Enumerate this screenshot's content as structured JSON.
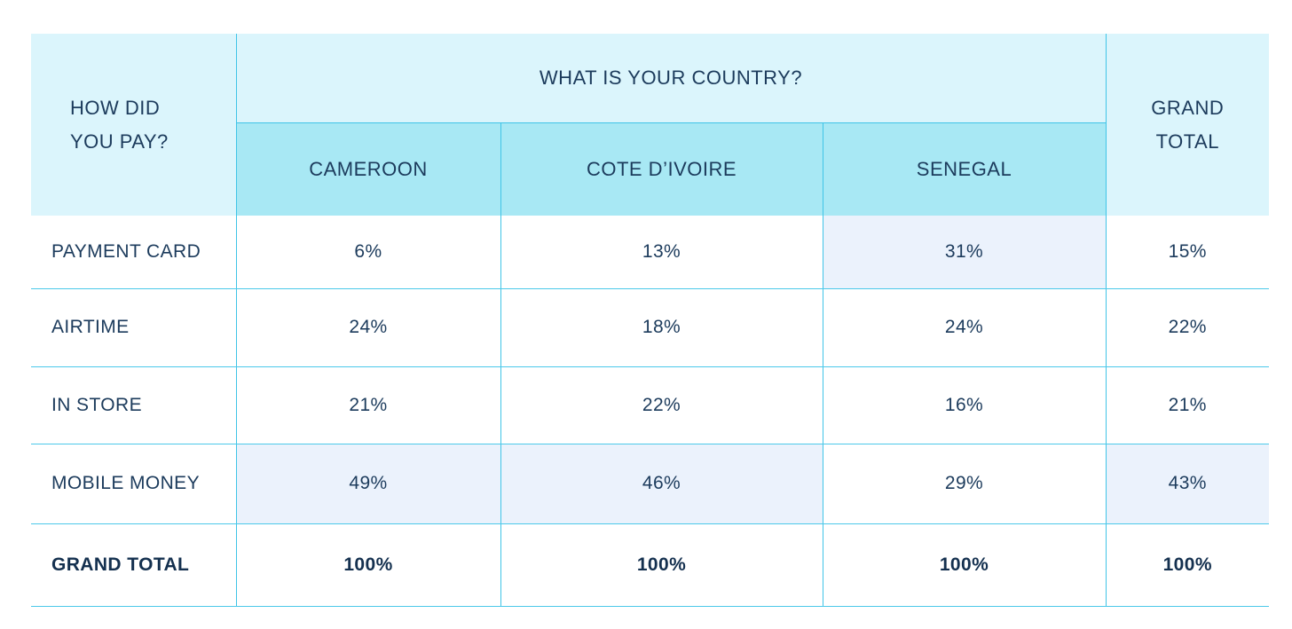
{
  "table": {
    "corner": {
      "line1": "HOW DID",
      "line2": "YOU PAY?"
    },
    "country_band": "WHAT IS YOUR COUNTRY?",
    "country_columns": [
      "CAMEROON",
      "COTE D’IVOIRE",
      "SENEGAL"
    ],
    "grand_total_header": {
      "line1": "GRAND",
      "line2": "TOTAL"
    },
    "rows": [
      {
        "label": "PAYMENT CARD",
        "values": [
          "6%",
          "13%",
          "31%",
          "15%"
        ],
        "highlight": [
          false,
          false,
          true,
          false
        ],
        "bold": false
      },
      {
        "label": "AIRTIME",
        "values": [
          "24%",
          "18%",
          "24%",
          "22%"
        ],
        "highlight": [
          false,
          false,
          false,
          false
        ],
        "bold": false
      },
      {
        "label": "IN STORE",
        "values": [
          "21%",
          "22%",
          "16%",
          "21%"
        ],
        "highlight": [
          false,
          false,
          false,
          false
        ],
        "bold": false
      },
      {
        "label": "MOBILE MONEY",
        "values": [
          "49%",
          "46%",
          "29%",
          "43%"
        ],
        "highlight": [
          true,
          true,
          false,
          true
        ],
        "bold": false
      },
      {
        "label": "GRAND TOTAL",
        "values": [
          "100%",
          "100%",
          "100%",
          "100%"
        ],
        "highlight": [
          false,
          false,
          false,
          false
        ],
        "bold": true
      }
    ],
    "colors": {
      "header_light_bg": "#dbf5fc",
      "subheader_bg": "#a8e8f4",
      "highlight_bg": "#ebf2fc",
      "border": "#3fc4e7",
      "text_navy": "#1c3b5c",
      "bold_navy": "#14304f",
      "page_bg": "#ffffff"
    }
  },
  "chart_data": {
    "type": "table",
    "title": "",
    "row_dimension": "HOW DID YOU PAY?",
    "column_dimension": "WHAT IS YOUR COUNTRY?",
    "columns": [
      "CAMEROON",
      "COTE D’IVOIRE",
      "SENEGAL",
      "GRAND TOTAL"
    ],
    "rows": [
      "PAYMENT CARD",
      "AIRTIME",
      "IN STORE",
      "MOBILE MONEY",
      "GRAND TOTAL"
    ],
    "values_percent": [
      [
        6,
        13,
        31,
        15
      ],
      [
        24,
        18,
        24,
        22
      ],
      [
        21,
        22,
        16,
        21
      ],
      [
        49,
        46,
        29,
        43
      ],
      [
        100,
        100,
        100,
        100
      ]
    ],
    "highlighted_cells": [
      {
        "row": "PAYMENT CARD",
        "column": "SENEGAL",
        "value": 31
      },
      {
        "row": "MOBILE MONEY",
        "column": "CAMEROON",
        "value": 49
      },
      {
        "row": "MOBILE MONEY",
        "column": "COTE D’IVOIRE",
        "value": 46
      },
      {
        "row": "MOBILE MONEY",
        "column": "GRAND TOTAL",
        "value": 43
      }
    ],
    "legend_position": "none",
    "grid": true
  }
}
